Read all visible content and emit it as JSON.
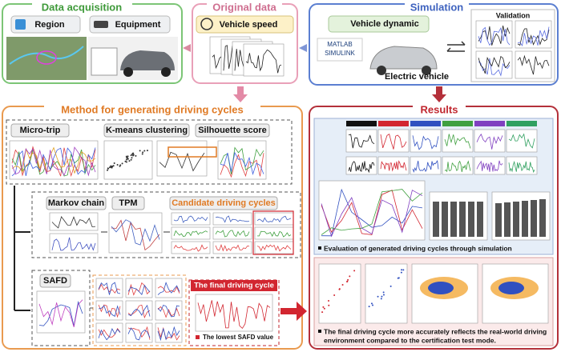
{
  "data_acquisition": {
    "title": "Data acquisition",
    "region": "Region",
    "equipment": "Equipment"
  },
  "original_data": {
    "title": "Original data",
    "vehicle_speed": "Vehicle speed"
  },
  "simulation": {
    "title": "Simulation",
    "vehicle_dynamic": "Vehicle dynamic",
    "software": [
      "MATLAB",
      "SIMULINK"
    ],
    "electric_vehicle": "Electric vehicle",
    "validation": "Validation"
  },
  "method": {
    "title": "Method for generating driving cycles",
    "micro_trip": "Micro-trip",
    "kmeans": "K-means clustering",
    "silhouette": "Silhouette score",
    "markov": "Markov chain",
    "tpm": "TPM",
    "candidate": "Candidate driving cycles",
    "safd": "SAFD",
    "final_cycle": "The final driving cycle",
    "lowest_safd": "The lowest SAFD value"
  },
  "results": {
    "title": "Results",
    "evaluation": "Evaluation of generated driving cycles through simulation",
    "conclusion": [
      "The final driving cycle more accurately reflects the real-world driving",
      "environment compared to the certification test mode."
    ]
  }
}
